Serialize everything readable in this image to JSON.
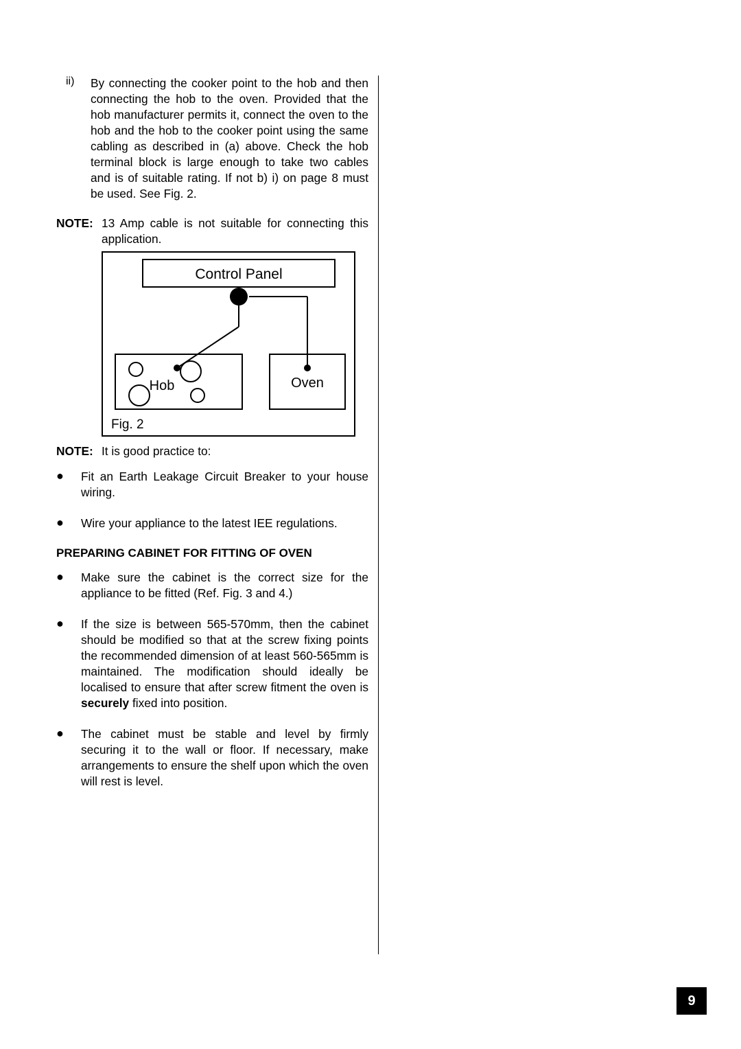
{
  "item_ii": {
    "marker": "ii)",
    "text": "By connecting the cooker point to the hob and then connecting the hob to the oven. Provided that the hob manufacturer permits it, connect the oven to the hob and the hob to the cooker point using the same cabling as described in (a) above. Check the hob terminal block is large enough to take two cables and is of suitable rating. If not b) i) on page 8 must be used. See Fig. 2."
  },
  "note1": {
    "label": "NOTE:",
    "text": "13 Amp cable is not suitable for connecting this application."
  },
  "figure": {
    "caption": "Fig. 2",
    "control_panel_label": "Control Panel",
    "hob_label": "Hob",
    "oven_label": "Oven",
    "border_color": "#000000",
    "bg_color": "#ffffff",
    "text_color": "#000000",
    "font_family": "Arial",
    "label_fontsize": 20,
    "caption_fontsize": 18,
    "outer_w": 370,
    "outer_h": 270,
    "stroke_w": 2
  },
  "note2": {
    "label": "NOTE:",
    "text": "It is good practice to:"
  },
  "bullets_a": [
    "Fit an Earth Leakage Circuit Breaker to your house wiring.",
    "Wire your appliance to the latest IEE regulations."
  ],
  "section_heading": "PREPARING CABINET FOR FITTING OF OVEN",
  "bullets_b": [
    {
      "text": "Make sure the cabinet is the correct size for the appliance to be fitted (Ref. Fig. 3 and 4.)"
    },
    {
      "pre": "If the size is between 565-570mm, then the cabinet should be modified so that at the screw fixing points the recommended dimension of at least 560-565mm is maintained. The modification should ideally be localised to ensure that after screw fitment the oven is ",
      "bold": "securely",
      "post": " fixed into position."
    },
    {
      "text": "The cabinet must be stable and level by firmly securing it to the wall or floor. If necessary, make arrangements to ensure the shelf upon which the oven will rest is level."
    }
  ],
  "page_number": "9"
}
